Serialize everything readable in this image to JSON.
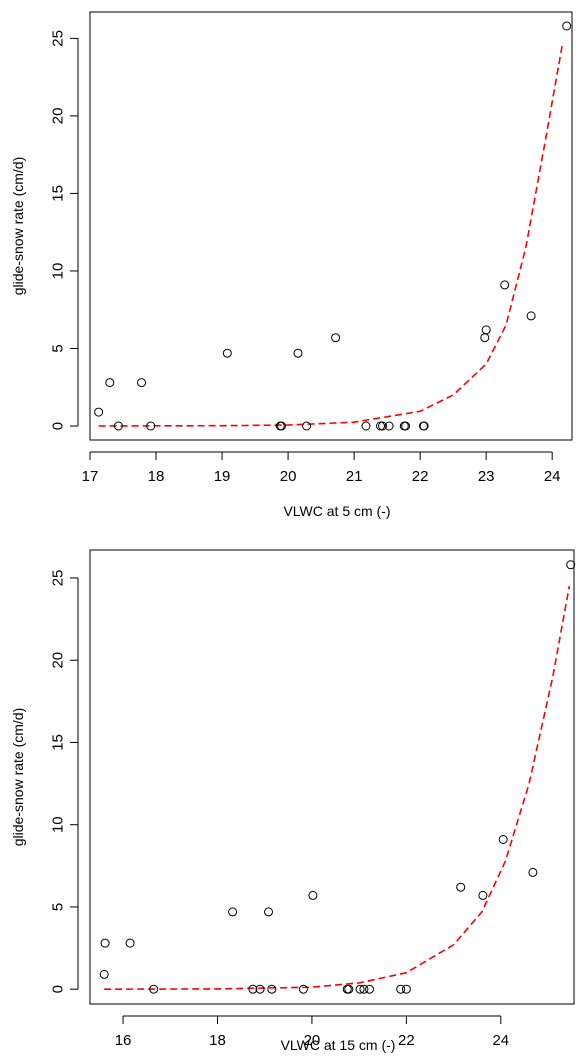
{
  "chart_data": [
    {
      "type": "scatter",
      "title": "",
      "xlabel": "VLWC at 5 cm (-)",
      "ylabel": "glide-snow rate (cm/d)",
      "xlim": [
        17.0,
        24.3
      ],
      "ylim": [
        -0.9,
        26.7
      ],
      "xticks": [
        17,
        18,
        19,
        20,
        21,
        22,
        23,
        24
      ],
      "yticks": [
        0,
        5,
        10,
        15,
        20,
        25
      ],
      "grid": false,
      "series": [
        {
          "kind": "points",
          "marker": "open-circle",
          "color": "#000000",
          "x": [
            17.13,
            17.3,
            17.43,
            17.78,
            17.92,
            19.08,
            19.88,
            19.9,
            20.15,
            20.28,
            20.72,
            21.18,
            21.4,
            21.43,
            21.53,
            21.76,
            21.78,
            22.05,
            22.06,
            22.98,
            23.0,
            23.28,
            23.68,
            24.22
          ],
          "y": [
            0.9,
            2.8,
            0.0,
            2.8,
            0.0,
            4.7,
            0.0,
            0.0,
            4.7,
            0.0,
            5.7,
            0.0,
            0.0,
            0.0,
            0.0,
            0.0,
            0.0,
            0.0,
            0.0,
            5.7,
            6.2,
            9.1,
            7.1,
            25.8
          ]
        },
        {
          "kind": "fit-line",
          "style": "dashed",
          "color": "#ff0000",
          "x": [
            17.13,
            19.0,
            20.0,
            21.0,
            22.0,
            22.5,
            23.0,
            23.3,
            23.6,
            23.9,
            24.15
          ],
          "y": [
            0.0,
            0.02,
            0.07,
            0.25,
            0.95,
            2.0,
            4.0,
            6.5,
            11.5,
            18.5,
            24.5
          ]
        }
      ]
    },
    {
      "type": "scatter",
      "title": "",
      "xlabel": "VLWC at 15 cm (-)",
      "ylabel": "glide-snow rate (cm/d)",
      "xlim": [
        15.3,
        25.55
      ],
      "ylim": [
        -0.9,
        26.7
      ],
      "xticks": [
        16,
        18,
        20,
        22,
        24
      ],
      "yticks": [
        0,
        5,
        10,
        15,
        20,
        25
      ],
      "grid": false,
      "series": [
        {
          "kind": "points",
          "marker": "open-circle",
          "color": "#000000",
          "x": [
            15.6,
            15.62,
            16.15,
            16.65,
            18.32,
            18.75,
            18.9,
            19.08,
            19.15,
            19.82,
            20.02,
            20.75,
            20.78,
            21.02,
            21.1,
            21.22,
            21.88,
            22.0,
            23.15,
            23.62,
            24.05,
            24.68,
            25.48
          ],
          "y": [
            0.9,
            2.8,
            2.8,
            0.0,
            4.7,
            0.0,
            0.0,
            4.7,
            0.0,
            0.0,
            5.7,
            0.0,
            0.0,
            0.0,
            0.0,
            0.0,
            0.0,
            0.0,
            6.2,
            5.7,
            9.1,
            7.1,
            25.8
          ]
        },
        {
          "kind": "fit-line",
          "style": "dashed",
          "color": "#ff0000",
          "x": [
            15.6,
            18.0,
            20.0,
            21.0,
            22.0,
            23.0,
            23.6,
            24.1,
            24.6,
            25.1,
            25.45
          ],
          "y": [
            0.0,
            0.02,
            0.12,
            0.38,
            1.0,
            2.7,
            4.7,
            7.8,
            12.5,
            19.0,
            24.5
          ]
        }
      ]
    }
  ]
}
